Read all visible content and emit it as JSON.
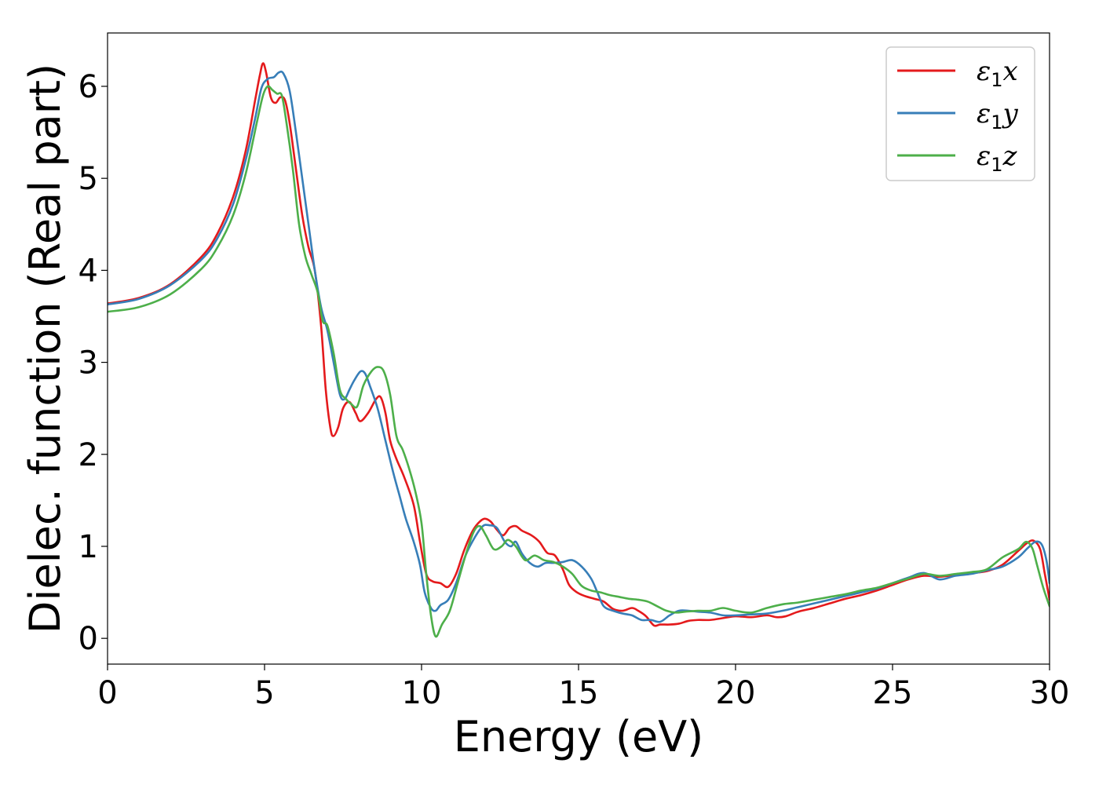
{
  "chart_data": {
    "type": "line",
    "xlabel": "Energy (eV)",
    "ylabel": "Dielec. function (Real part)",
    "xlim": [
      0,
      30
    ],
    "ylim": [
      -0.28,
      6.58
    ],
    "xticks": [
      0,
      5,
      10,
      15,
      20,
      25,
      30
    ],
    "yticks": [
      0,
      1,
      2,
      3,
      4,
      5,
      6
    ],
    "grid": false,
    "legend_position": "top-right",
    "series": [
      {
        "name_main": "ε",
        "name_sub": "1",
        "name_axis": "x",
        "color": "#e41a1c",
        "x": [
          0,
          1,
          2,
          3,
          3.5,
          4,
          4.4,
          4.7,
          4.85,
          4.95,
          5.05,
          5.2,
          5.35,
          5.5,
          5.65,
          5.8,
          6.0,
          6.2,
          6.4,
          6.6,
          6.8,
          6.95,
          7.1,
          7.2,
          7.35,
          7.5,
          7.7,
          7.9,
          8.05,
          8.3,
          8.55,
          8.7,
          8.85,
          9.0,
          9.2,
          9.45,
          9.75,
          9.95,
          10.15,
          10.35,
          10.6,
          10.85,
          11.1,
          11.35,
          11.6,
          11.8,
          12.0,
          12.2,
          12.4,
          12.6,
          12.8,
          13.0,
          13.2,
          13.5,
          13.75,
          14.0,
          14.25,
          14.5,
          14.7,
          14.95,
          15.2,
          15.5,
          15.8,
          16.1,
          16.4,
          16.7,
          16.9,
          17.15,
          17.4,
          17.6,
          17.9,
          18.2,
          18.5,
          18.8,
          19.2,
          19.6,
          20.0,
          20.5,
          21.0,
          21.3,
          21.6,
          22.0,
          22.5,
          23.0,
          23.5,
          24.0,
          24.5,
          25.0,
          25.5,
          26.0,
          26.5,
          27.0,
          27.5,
          28.0,
          28.5,
          29.0,
          29.3,
          29.5,
          29.7,
          29.85,
          30.0
        ],
        "y": [
          3.64,
          3.7,
          3.85,
          4.15,
          4.4,
          4.8,
          5.3,
          5.85,
          6.12,
          6.25,
          6.15,
          5.88,
          5.82,
          5.88,
          5.85,
          5.6,
          5.1,
          4.6,
          4.25,
          4.0,
          3.4,
          2.7,
          2.28,
          2.2,
          2.3,
          2.5,
          2.57,
          2.45,
          2.36,
          2.45,
          2.6,
          2.62,
          2.45,
          2.15,
          1.95,
          1.75,
          1.45,
          1.05,
          0.7,
          0.62,
          0.6,
          0.56,
          0.7,
          0.95,
          1.15,
          1.25,
          1.3,
          1.27,
          1.18,
          1.12,
          1.2,
          1.22,
          1.17,
          1.12,
          1.05,
          0.93,
          0.9,
          0.75,
          0.58,
          0.5,
          0.46,
          0.43,
          0.4,
          0.32,
          0.3,
          0.33,
          0.3,
          0.24,
          0.14,
          0.15,
          0.15,
          0.16,
          0.19,
          0.2,
          0.2,
          0.22,
          0.24,
          0.23,
          0.25,
          0.23,
          0.24,
          0.29,
          0.33,
          0.38,
          0.43,
          0.47,
          0.52,
          0.58,
          0.64,
          0.68,
          0.67,
          0.69,
          0.71,
          0.73,
          0.8,
          0.95,
          1.04,
          1.06,
          0.97,
          0.7,
          0.42
        ]
      },
      {
        "name_main": "ε",
        "name_sub": "1",
        "name_axis": "y",
        "color": "#377eb8",
        "x": [
          0,
          1,
          2,
          3,
          3.5,
          4,
          4.4,
          4.7,
          4.9,
          5.1,
          5.3,
          5.45,
          5.6,
          5.8,
          6.0,
          6.2,
          6.4,
          6.6,
          6.8,
          7.0,
          7.2,
          7.4,
          7.55,
          7.7,
          7.85,
          8.05,
          8.2,
          8.35,
          8.6,
          8.85,
          9.1,
          9.3,
          9.5,
          9.75,
          9.95,
          10.1,
          10.3,
          10.45,
          10.6,
          10.85,
          11.1,
          11.4,
          11.7,
          11.95,
          12.15,
          12.4,
          12.65,
          12.85,
          13.0,
          13.2,
          13.45,
          13.7,
          13.95,
          14.2,
          14.5,
          14.8,
          15.1,
          15.4,
          15.6,
          15.8,
          16.1,
          16.4,
          16.7,
          17.0,
          17.3,
          17.6,
          17.9,
          18.2,
          18.5,
          18.8,
          19.2,
          19.6,
          20.0,
          20.5,
          21.0,
          21.5,
          22.0,
          22.5,
          23.0,
          23.5,
          24.0,
          24.5,
          25.0,
          25.5,
          26.0,
          26.5,
          27.0,
          27.5,
          28.0,
          28.5,
          29.0,
          29.3,
          29.55,
          29.75,
          29.9,
          30.0
        ],
        "y": [
          3.63,
          3.69,
          3.84,
          4.12,
          4.35,
          4.72,
          5.2,
          5.65,
          5.98,
          6.08,
          6.1,
          6.15,
          6.14,
          5.95,
          5.5,
          5.0,
          4.5,
          4.0,
          3.6,
          3.35,
          3.0,
          2.65,
          2.6,
          2.7,
          2.8,
          2.9,
          2.88,
          2.75,
          2.5,
          2.15,
          1.8,
          1.55,
          1.3,
          1.05,
          0.8,
          0.5,
          0.33,
          0.3,
          0.36,
          0.42,
          0.6,
          0.9,
          1.1,
          1.22,
          1.23,
          1.2,
          1.05,
          1.0,
          1.05,
          0.92,
          0.82,
          0.78,
          0.82,
          0.82,
          0.83,
          0.85,
          0.78,
          0.65,
          0.5,
          0.35,
          0.3,
          0.27,
          0.25,
          0.2,
          0.2,
          0.18,
          0.25,
          0.3,
          0.3,
          0.29,
          0.28,
          0.25,
          0.25,
          0.26,
          0.27,
          0.3,
          0.34,
          0.38,
          0.42,
          0.46,
          0.5,
          0.54,
          0.6,
          0.66,
          0.71,
          0.64,
          0.68,
          0.7,
          0.74,
          0.78,
          0.88,
          0.98,
          1.05,
          1.02,
          0.85,
          0.6
        ]
      },
      {
        "name_main": "ε",
        "name_sub": "1",
        "name_axis": "z",
        "color": "#4daf4a",
        "x": [
          0,
          1,
          2,
          3,
          3.5,
          4,
          4.4,
          4.75,
          4.95,
          5.1,
          5.25,
          5.4,
          5.55,
          5.7,
          5.9,
          6.1,
          6.3,
          6.5,
          6.7,
          6.85,
          7.0,
          7.2,
          7.4,
          7.6,
          7.75,
          7.95,
          8.15,
          8.4,
          8.6,
          8.8,
          9.0,
          9.2,
          9.4,
          9.6,
          9.8,
          10.0,
          10.15,
          10.3,
          10.45,
          10.65,
          10.9,
          11.15,
          11.4,
          11.65,
          11.85,
          12.05,
          12.3,
          12.55,
          12.75,
          13.0,
          13.3,
          13.6,
          13.9,
          14.2,
          14.5,
          14.8,
          15.1,
          15.4,
          15.7,
          16.0,
          16.3,
          16.6,
          16.9,
          17.2,
          17.5,
          17.8,
          18.1,
          18.4,
          18.8,
          19.2,
          19.6,
          20.0,
          20.5,
          21.0,
          21.5,
          22.0,
          22.5,
          23.0,
          23.5,
          24.0,
          24.5,
          25.0,
          25.5,
          26.0,
          26.5,
          27.0,
          27.5,
          28.0,
          28.5,
          29.0,
          29.25,
          29.45,
          29.6,
          29.8,
          30.0
        ],
        "y": [
          3.55,
          3.6,
          3.74,
          4.02,
          4.25,
          4.6,
          5.05,
          5.6,
          5.9,
          6.0,
          5.96,
          5.92,
          5.9,
          5.6,
          5.1,
          4.5,
          4.15,
          3.95,
          3.75,
          3.45,
          3.4,
          3.1,
          2.7,
          2.6,
          2.55,
          2.52,
          2.75,
          2.9,
          2.95,
          2.9,
          2.65,
          2.2,
          2.05,
          1.85,
          1.6,
          1.25,
          0.7,
          0.25,
          0.02,
          0.15,
          0.3,
          0.6,
          0.9,
          1.15,
          1.22,
          1.12,
          0.97,
          1.0,
          1.07,
          1.0,
          0.85,
          0.9,
          0.85,
          0.83,
          0.78,
          0.7,
          0.57,
          0.52,
          0.5,
          0.47,
          0.45,
          0.43,
          0.42,
          0.4,
          0.35,
          0.3,
          0.28,
          0.29,
          0.3,
          0.3,
          0.33,
          0.3,
          0.28,
          0.33,
          0.37,
          0.39,
          0.42,
          0.45,
          0.48,
          0.52,
          0.55,
          0.6,
          0.65,
          0.7,
          0.68,
          0.7,
          0.72,
          0.75,
          0.88,
          0.97,
          1.05,
          0.98,
          0.8,
          0.55,
          0.35
        ]
      }
    ]
  }
}
